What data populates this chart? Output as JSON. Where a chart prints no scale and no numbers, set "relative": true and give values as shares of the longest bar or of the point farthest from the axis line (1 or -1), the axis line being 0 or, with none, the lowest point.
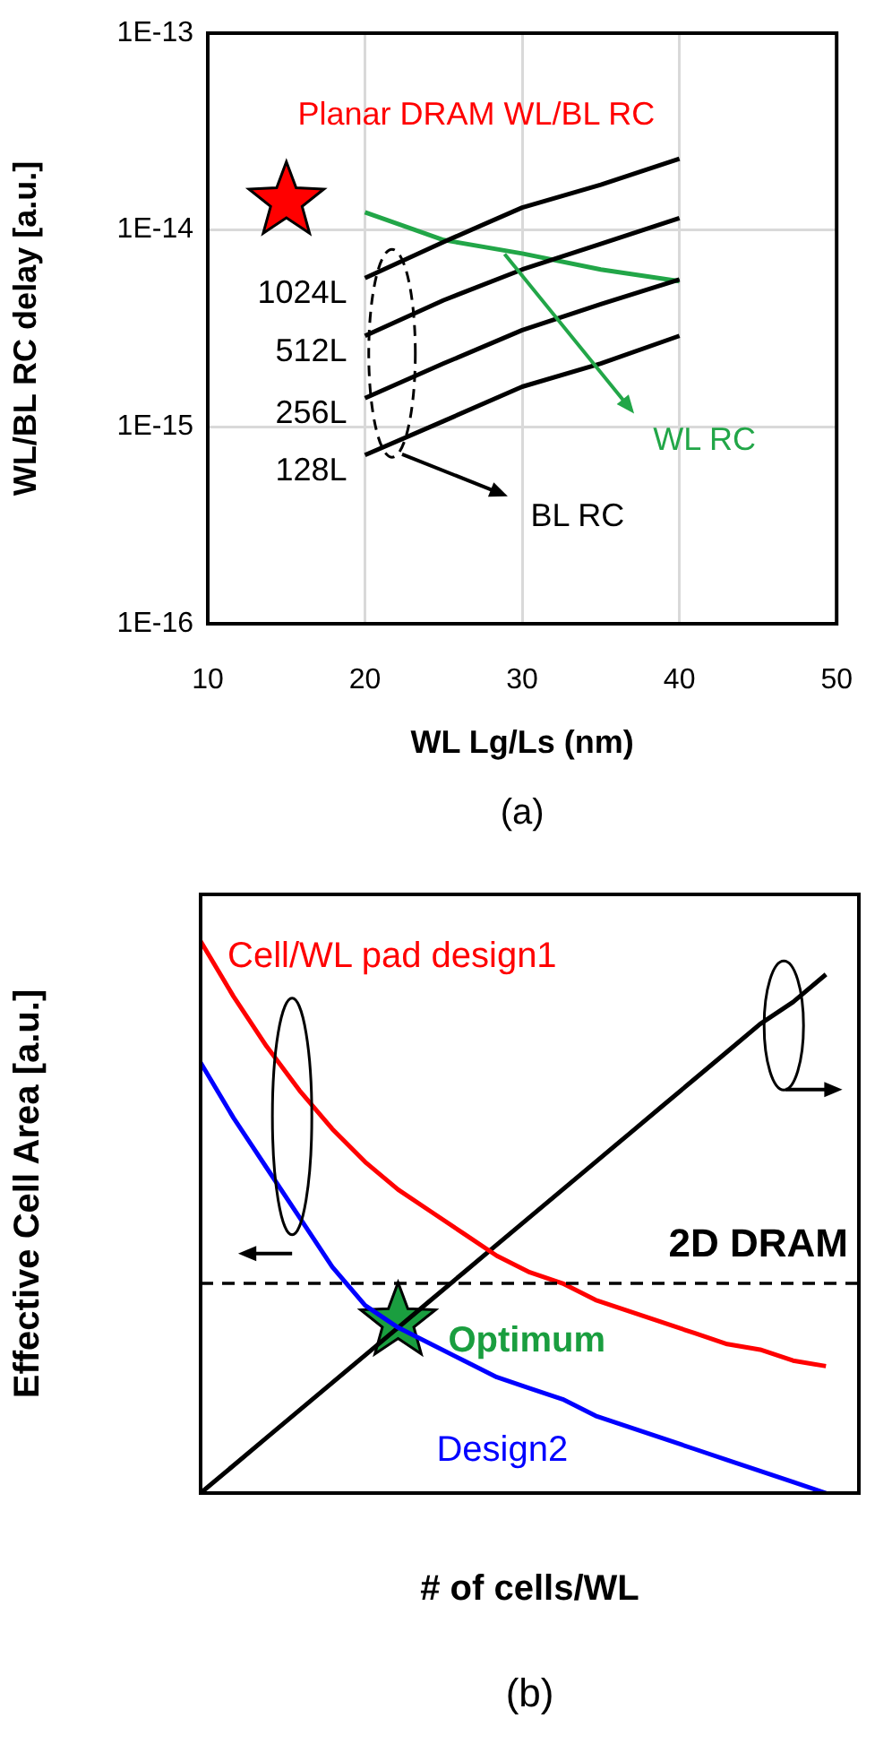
{
  "chart_data": [
    {
      "type": "line",
      "xlabel": "WL Lg/Ls (nm)",
      "ylabel": "WL/BL RC delay [a.u.]",
      "log": "y",
      "grid": true,
      "marker": "none",
      "xlim": [
        10,
        50
      ],
      "xticks": [
        10,
        20,
        30,
        40,
        50
      ],
      "ylim": [
        1e-16,
        1e-13
      ],
      "yticks": [
        {
          "value": 1e-16,
          "label": "1E-16"
        },
        {
          "value": 1e-15,
          "label": "1E-15"
        },
        {
          "value": 1e-14,
          "label": "1E-14"
        },
        {
          "value": 1e-13,
          "label": "1E-13"
        }
      ],
      "series": [
        {
          "name": "1024L",
          "color": "#000000",
          "x": [
            20,
            25,
            30,
            35,
            40
          ],
          "values": [
            5.7e-15,
            8.7e-15,
            1.3e-14,
            1.7e-14,
            2.3e-14
          ]
        },
        {
          "name": "512L",
          "color": "#000000",
          "x": [
            20,
            25,
            30,
            35,
            40
          ],
          "values": [
            2.9e-15,
            4.4e-15,
            6.3e-15,
            8.5e-15,
            1.15e-14
          ]
        },
        {
          "name": "256L",
          "color": "#000000",
          "x": [
            20,
            25,
            30,
            35,
            40
          ],
          "values": [
            1.4e-15,
            2.1e-15,
            3.1e-15,
            4.2e-15,
            5.6e-15
          ]
        },
        {
          "name": "128L",
          "color": "#000000",
          "x": [
            20,
            25,
            30,
            35,
            40
          ],
          "values": [
            7.2e-16,
            1.07e-15,
            1.6e-15,
            2.1e-15,
            2.9e-15
          ]
        },
        {
          "name": "WL RC",
          "color": "#22a648",
          "x": [
            20,
            25,
            30,
            35,
            40
          ],
          "values": [
            1.23e-14,
            8.9e-15,
            7.6e-15,
            6.3e-15,
            5.5e-15
          ]
        },
        {
          "name": "Planar DRAM WL/BL RC",
          "type": "scatter",
          "marker": "star",
          "color": "#ff0000",
          "x": [
            15
          ],
          "values": [
            1.4e-14
          ]
        }
      ],
      "annotations": [
        "BL RC",
        "(a)"
      ]
    },
    {
      "type": "line",
      "relative": true,
      "xlabel": "# of cells/WL",
      "ylabel": "Effective Cell Area [a.u.]",
      "marker": "none",
      "categories": [
        null,
        null,
        null,
        null,
        null,
        null,
        null,
        null,
        null,
        null,
        null,
        null,
        null,
        null,
        null,
        null,
        null,
        null,
        null,
        null,
        null
      ],
      "series": [
        {
          "name": "Cell/WL pad design1",
          "color": "#ff0000",
          "values": [
            1,
            0.9,
            0.81,
            0.73,
            0.66,
            0.6,
            0.55,
            0.51,
            0.47,
            0.43,
            0.4,
            0.38,
            0.35,
            0.33,
            0.31,
            0.29,
            0.27,
            0.26,
            0.24,
            0.23,
            null
          ]
        },
        {
          "name": "Design2",
          "color": "#0000ff",
          "values": [
            0.78,
            0.68,
            0.59,
            0.5,
            0.41,
            0.34,
            0.3,
            0.27,
            0.24,
            0.21,
            0.19,
            0.17,
            0.14,
            0.12,
            0.1,
            0.08,
            0.06,
            0.04,
            0.02,
            0,
            null
          ]
        },
        {
          "color": "#000000",
          "values": [
            0,
            0.05,
            0.1,
            0.15,
            0.2,
            0.25,
            0.3,
            0.35,
            0.4,
            0.45,
            0.5,
            0.55,
            0.6,
            0.65,
            0.7,
            0.75,
            0.8,
            0.85,
            0.89,
            0.94,
            null
          ]
        },
        {
          "name": "Optimum",
          "marker": "star",
          "color": "#1a9e3f",
          "values": [
            null,
            null,
            null,
            null,
            null,
            null,
            0.31,
            null,
            null,
            null,
            null,
            null,
            null,
            null,
            null,
            null,
            null,
            null,
            null,
            null,
            null
          ]
        }
      ],
      "ref_lines": [
        {
          "axis": "y",
          "value": 0.38,
          "label": "2D DRAM",
          "color": "#000000",
          "line_style": "dashed"
        }
      ],
      "annotations": [
        "(b)"
      ]
    }
  ]
}
